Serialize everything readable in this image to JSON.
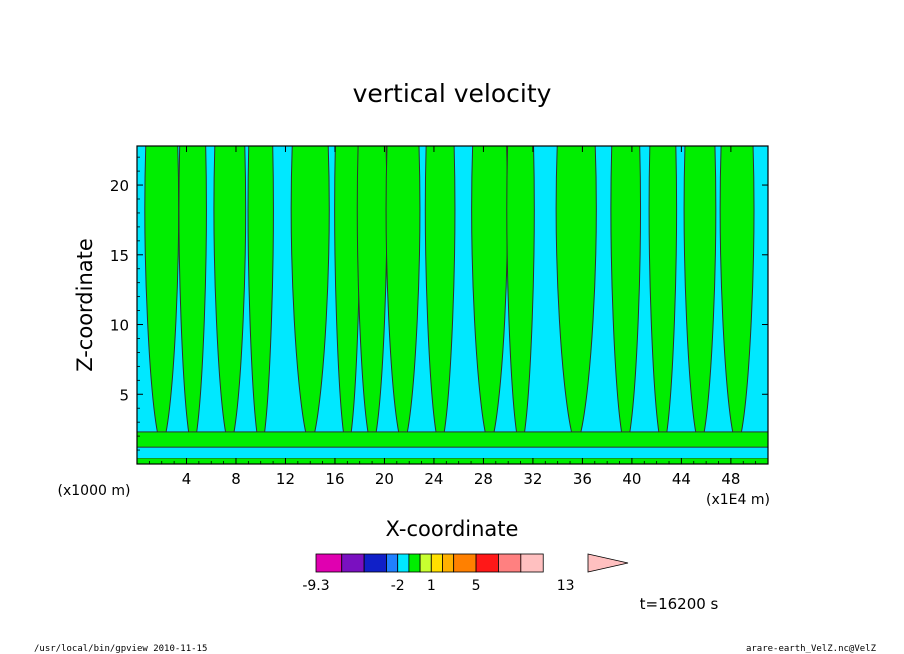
{
  "chart_data": {
    "type": "heatmap",
    "title": "vertical velocity",
    "xlabel": "X-coordinate",
    "ylabel": "Z-coordinate",
    "x_unit": "(x1E4 m)",
    "y_unit": "(x1000 m)",
    "xlim": [
      0,
      51
    ],
    "ylim": [
      0,
      22.8
    ],
    "x_ticks": [
      "4",
      "8",
      "12",
      "16",
      "20",
      "24",
      "28",
      "32",
      "36",
      "40",
      "44",
      "48"
    ],
    "y_ticks": [
      "5",
      "10",
      "15",
      "20"
    ],
    "colorbar": {
      "levels": [
        -9.3,
        -7,
        -5,
        -3,
        -2,
        -1,
        0,
        1,
        2,
        3,
        5,
        7,
        9,
        11,
        13,
        15
      ],
      "tick_labels": [
        "-9.3",
        "-2",
        "1",
        "5",
        "13"
      ],
      "colors": [
        "#e000b0",
        "#7a10c0",
        "#1020c8",
        "#2080ff",
        "#00e8ff",
        "#00ee00",
        "#c8ff30",
        "#ffe000",
        "#ffb000",
        "#ff8000",
        "#ff1818",
        "#ff8080",
        "#ffc0c0"
      ],
      "extend": "max"
    },
    "dominant_colors": {
      "negative": "#00e8ff",
      "positive": "#00ee00",
      "contour": "#303030"
    },
    "updraft_plumes_x": [
      2,
      4.5,
      7.5,
      10,
      14,
      17,
      19,
      21.5,
      24.5,
      28.5,
      31,
      35.5,
      39.5,
      42.5,
      45.5,
      48.5
    ]
  },
  "time_label": "t=16200 s",
  "footer_left": "/usr/local/bin/gpview  2010-11-15",
  "footer_right": "arare-earth_VelZ.nc@VelZ"
}
